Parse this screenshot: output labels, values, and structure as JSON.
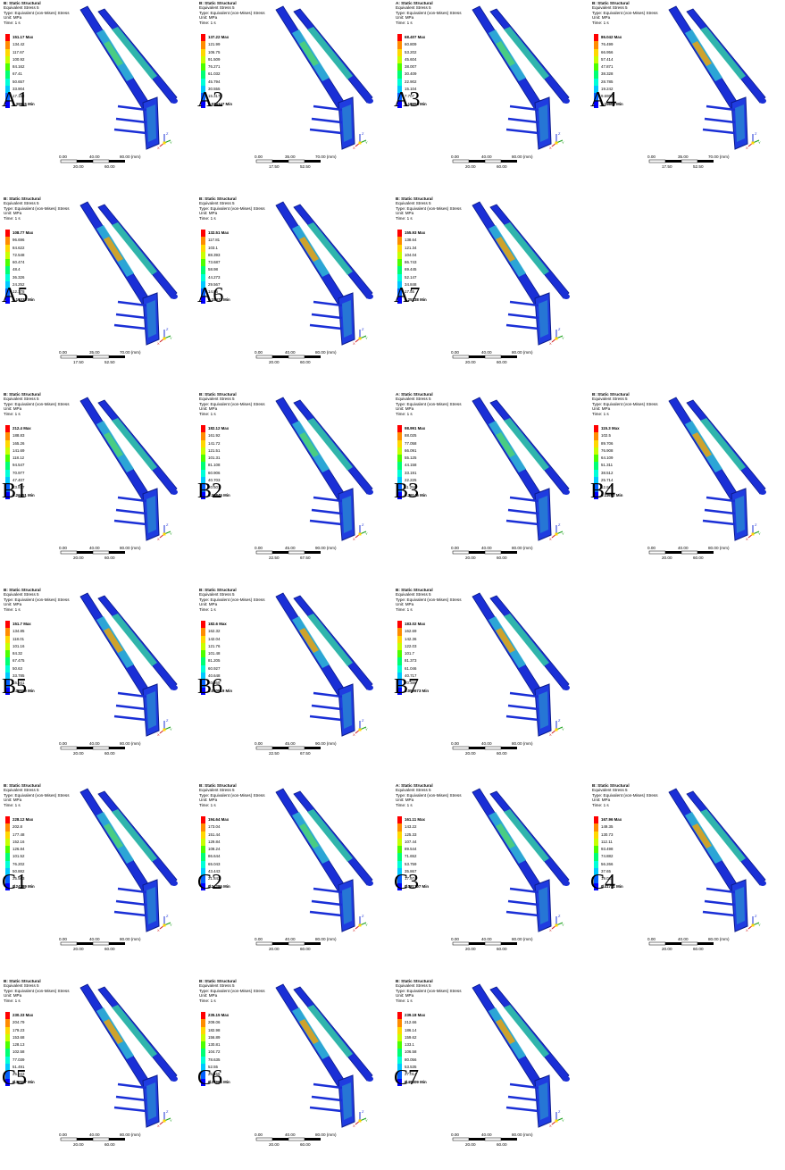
{
  "header": {
    "line2": "Equivalent Stress 5",
    "line3": "Type: Equivalent (von-Mises) Stress",
    "line4": "Unit: MPa",
    "line5": "Time: 1 s"
  },
  "colors": [
    "#ff0000",
    "#ff8c00",
    "#ffd800",
    "#c8ff00",
    "#4cff00",
    "#00ff74",
    "#00ffd8",
    "#00c8ff",
    "#0060ff",
    "#0000ff"
  ],
  "panels": [
    {
      "label": "A1",
      "title": "B: Static Structural",
      "legend": [
        "151.17 Max",
        "134.42",
        "117.67",
        "100.92",
        "84.162",
        "67.41",
        "50.657",
        "33.904",
        "17.152",
        "0.39915 Min"
      ],
      "scale": [
        "0.00",
        "40.00",
        "80.00 (mm)",
        "20.00",
        "60.00"
      ]
    },
    {
      "label": "A2",
      "title": "B: Static Structural",
      "legend": [
        "137.22 Max",
        "121.99",
        "106.75",
        "91.509",
        "76.271",
        "61.032",
        "45.794",
        "30.555",
        "15.317",
        "0.078147 Min"
      ],
      "scale": [
        "0.00",
        "35.00",
        "70.00 (mm)",
        "17.50",
        "52.50"
      ]
    },
    {
      "label": "A3",
      "title": "A: Static Structural",
      "legend": [
        "68.407 Max",
        "60.809",
        "53.202",
        "45.604",
        "38.007",
        "30.409",
        "22.902",
        "15.104",
        "7.707",
        "0.10951 Min"
      ],
      "scale": [
        "0.00",
        "40.00",
        "80.00 (mm)",
        "20.00",
        "60.00"
      ]
    },
    {
      "label": "A4",
      "title": "B: Static Structural",
      "legend": [
        "86.042 Max",
        "76.499",
        "66.956",
        "57.414",
        "47.871",
        "38.328",
        "28.785",
        "19.242",
        "9.6989",
        "0.15603 Min"
      ],
      "scale": [
        "0.00",
        "35.00",
        "70.00 (mm)",
        "17.50",
        "52.50"
      ]
    },
    {
      "label": "A5",
      "title": "B: Static Structural",
      "legend": [
        "108.77 Max",
        "96.696",
        "84.622",
        "72.548",
        "60.474",
        "48.4",
        "36.326",
        "24.252",
        "12.178",
        "0.10338 Min"
      ],
      "scale": [
        "0.00",
        "35.00",
        "70.00 (mm)",
        "17.50",
        "52.50"
      ]
    },
    {
      "label": "A6",
      "title": "B: Static Structural",
      "legend": [
        "132.51 Max",
        "117.81",
        "103.1",
        "88.393",
        "73.687",
        "58.98",
        "44.273",
        "29.567",
        "14.86",
        "0.15372 Min"
      ],
      "scale": [
        "0.00",
        "40.00",
        "80.00 (mm)",
        "20.00",
        "60.00"
      ]
    },
    {
      "label": "A7",
      "title": "B: Static Structural",
      "legend": [
        "155.93 Max",
        "138.64",
        "121.34",
        "104.04",
        "86.743",
        "69.445",
        "52.147",
        "34.848",
        "17.55",
        "0.25238 Min"
      ],
      "scale": [
        "0.00",
        "40.00",
        "80.00 (mm)",
        "20.00",
        "60.00"
      ]
    },
    {
      "label": "B1",
      "title": "B: Static Structural",
      "legend": [
        "212.4 Max",
        "188.83",
        "165.26",
        "141.69",
        "118.12",
        "94.547",
        "70.977",
        "47.407",
        "23.837",
        "0.26651 Min"
      ],
      "scale": [
        "0.00",
        "40.00",
        "80.00 (mm)",
        "20.00",
        "60.00"
      ]
    },
    {
      "label": "B2",
      "title": "B: Static Structural",
      "legend": [
        "182.12 Max",
        "161.92",
        "141.72",
        "121.51",
        "101.31",
        "81.108",
        "60.906",
        "40.703",
        "20.501",
        "0.29845 Min"
      ],
      "scale": [
        "0.00",
        "45.00",
        "90.00 (mm)",
        "22.50",
        "67.50"
      ]
    },
    {
      "label": "B3",
      "title": "A: Static Structural",
      "legend": [
        "98.991 Max",
        "88.025",
        "77.058",
        "66.091",
        "55.125",
        "44.158",
        "33.191",
        "22.225",
        "11.258",
        "0.29146 Min"
      ],
      "scale": [
        "0.00",
        "40.00",
        "80.00 (mm)",
        "20.00",
        "60.00"
      ]
    },
    {
      "label": "B4",
      "title": "B: Static Structural",
      "legend": [
        "115.3 Max",
        "102.5",
        "89.706",
        "76.908",
        "64.109",
        "51.311",
        "38.512",
        "25.714",
        "12.915",
        "0.11652 Min"
      ],
      "scale": [
        "0.00",
        "40.00",
        "80.00 (mm)",
        "20.00",
        "60.00"
      ]
    },
    {
      "label": "B5",
      "title": "B: Static Structural",
      "legend": [
        "151.7 Max",
        "134.85",
        "118.01",
        "101.16",
        "84.32",
        "67.475",
        "50.63",
        "33.785",
        "16.941",
        "0.09589 Min"
      ],
      "scale": [
        "0.00",
        "40.00",
        "80.00 (mm)",
        "20.00",
        "60.00"
      ]
    },
    {
      "label": "B6",
      "title": "B: Static Structural",
      "legend": [
        "182.6 Max",
        "162.32",
        "142.04",
        "121.76",
        "101.48",
        "81.205",
        "60.927",
        "40.648",
        "20.369",
        "0.090519 Min"
      ],
      "scale": [
        "0.00",
        "45.00",
        "90.00 (mm)",
        "22.50",
        "67.50"
      ]
    },
    {
      "label": "B7",
      "title": "B: Static Structural",
      "legend": [
        "183.02 Max",
        "162.69",
        "142.36",
        "122.03",
        "101.7",
        "81.373",
        "61.046",
        "40.717",
        "20.388",
        "0.059673 Min"
      ],
      "scale": [
        "0.00",
        "40.00",
        "80.00 (mm)",
        "20.00",
        "60.00"
      ]
    },
    {
      "label": "C1",
      "title": "B: Static Structural",
      "legend": [
        "228.12 Max",
        "202.8",
        "177.48",
        "152.16",
        "126.84",
        "101.52",
        "76.202",
        "50.882",
        "25.563",
        "0.24289 Min"
      ],
      "scale": [
        "0.00",
        "40.00",
        "80.00 (mm)",
        "20.00",
        "60.00"
      ]
    },
    {
      "label": "C2",
      "title": "B: Static Structural",
      "legend": [
        "194.64 Max",
        "173.04",
        "151.44",
        "129.84",
        "108.24",
        "86.644",
        "65.043",
        "43.443",
        "21.843",
        "0.24286 Min"
      ],
      "scale": [
        "0.00",
        "40.00",
        "80.00 (mm)",
        "20.00",
        "60.00"
      ]
    },
    {
      "label": "C3",
      "title": "A: Static Structural",
      "legend": [
        "161.11 Max",
        "143.22",
        "125.33",
        "107.44",
        "89.544",
        "71.652",
        "53.759",
        "35.867",
        "17.974",
        "0.081707 Min"
      ],
      "scale": [
        "0.00",
        "40.00",
        "80.00 (mm)",
        "20.00",
        "60.00"
      ]
    },
    {
      "label": "C4",
      "title": "B: Static Structural",
      "legend": [
        "167.96 Max",
        "149.35",
        "130.73",
        "112.11",
        "93.498",
        "74.882",
        "56.266",
        "37.65",
        "19.033",
        "0.41731 Min"
      ],
      "scale": [
        "0.00",
        "40.00",
        "80.00 (mm)",
        "20.00",
        "60.00"
      ]
    },
    {
      "label": "C5",
      "title": "B: Static Structural",
      "legend": [
        "230.33 Max",
        "204.79",
        "179.23",
        "153.68",
        "128.13",
        "102.58",
        "77.039",
        "51.491",
        "25.943",
        "0.39507 Min"
      ],
      "scale": [
        "0.00",
        "40.00",
        "80.00 (mm)",
        "20.00",
        "60.00"
      ]
    },
    {
      "label": "C6",
      "title": "B: Static Structural",
      "legend": [
        "235.15 Max",
        "209.06",
        "182.98",
        "156.89",
        "130.81",
        "104.72",
        "78.635",
        "52.55",
        "26.465",
        "0.37964 Min"
      ],
      "scale": [
        "0.00",
        "40.00",
        "80.00 (mm)",
        "20.00",
        "60.00"
      ]
    },
    {
      "label": "C7",
      "title": "B: Static Structural",
      "legend": [
        "239.18 Max",
        "212.66",
        "186.14",
        "159.62",
        "133.1",
        "106.58",
        "80.056",
        "53.535",
        "27.014",
        "0.49309 Min"
      ],
      "scale": [
        "0.00",
        "40.00",
        "80.00 (mm)",
        "20.00",
        "60.00"
      ]
    }
  ],
  "axis_labels": {
    "z": "Z",
    "y": "Y",
    "x": "X"
  }
}
